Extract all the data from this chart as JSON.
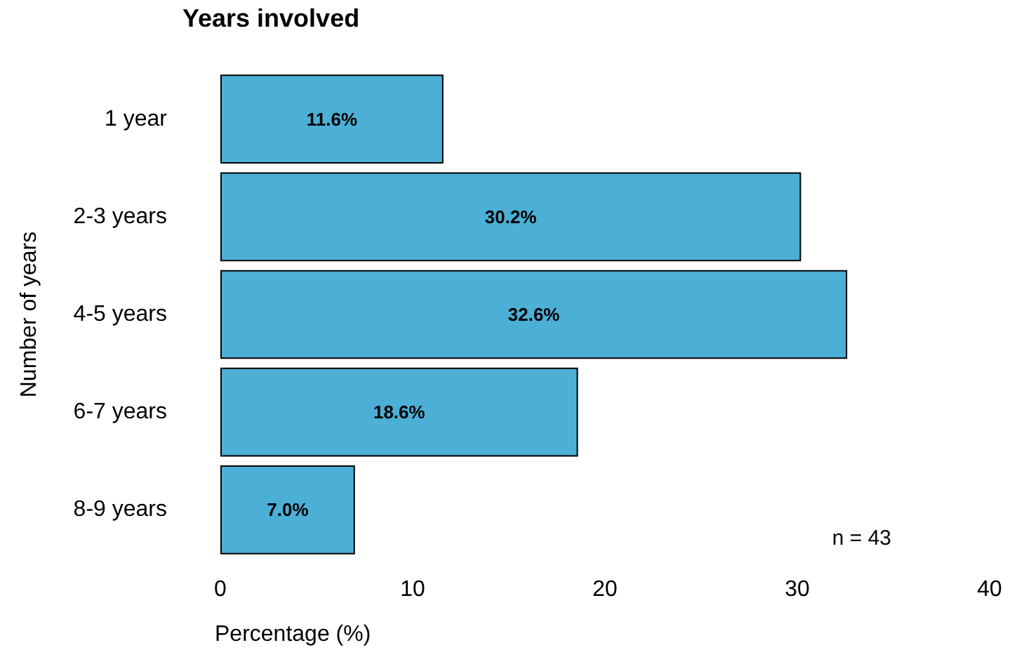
{
  "chart_data": {
    "type": "bar",
    "orientation": "horizontal",
    "title": "Years involved",
    "xlabel": "Percentage (%)",
    "ylabel": "Number of years",
    "categories": [
      "1 year",
      "2-3 years",
      "4-5 years",
      "6-7 years",
      "8-9 years"
    ],
    "values": [
      11.6,
      30.2,
      32.6,
      18.6,
      7.0
    ],
    "color": "#4bafd6",
    "value_labels": [
      "11.6%",
      "30.2%",
      "32.6%",
      "18.6%",
      "7.0%"
    ],
    "xlim": [
      0,
      40
    ],
    "xticks": [
      0,
      10,
      20,
      30,
      40
    ],
    "annotations": [
      "n = 43"
    ]
  }
}
